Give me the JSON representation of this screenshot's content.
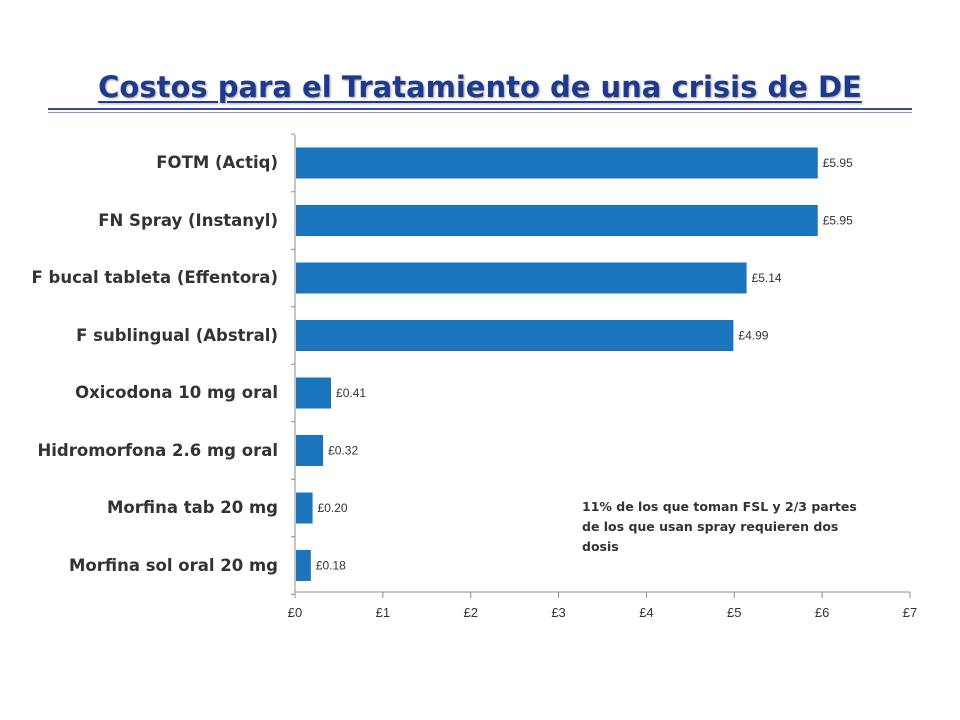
{
  "slide": {
    "title": "Costos para el Tratamiento de una crisis de DE",
    "note": "11% de los que toman FSL y 2/3 partes\nde los que usan spray requieren dos\ndosis"
  },
  "chart_data": {
    "type": "bar",
    "orientation": "horizontal",
    "title": "",
    "xlabel": "",
    "ylabel": "",
    "categories": [
      "FOTM (Actiq)",
      "FN Spray (Instanyl)",
      "F bucal tableta (Effentora)",
      "F  sublingual  (Abstral)",
      "Oxicodona 10 mg oral",
      "Hidromorfona 2.6 mg oral",
      "Morfina tab 20 mg",
      "Morfina sol oral 20 mg"
    ],
    "values": [
      5.95,
      5.95,
      5.14,
      4.99,
      0.41,
      0.32,
      0.2,
      0.18
    ],
    "value_labels": [
      "£5.95",
      "£5.95",
      "£5.14",
      "£4.99",
      "£0.41",
      "£0.32",
      "£0.20",
      "£0.18"
    ],
    "xlim": [
      0,
      7
    ],
    "x_ticks": [
      0,
      1,
      2,
      3,
      4,
      5,
      6,
      7
    ],
    "x_tick_labels": [
      "£0",
      "£1",
      "£2",
      "£3",
      "£4",
      "£5",
      "£6",
      "£7"
    ],
    "bar_color": "#1a75bc",
    "grid": false,
    "legend": "none"
  }
}
